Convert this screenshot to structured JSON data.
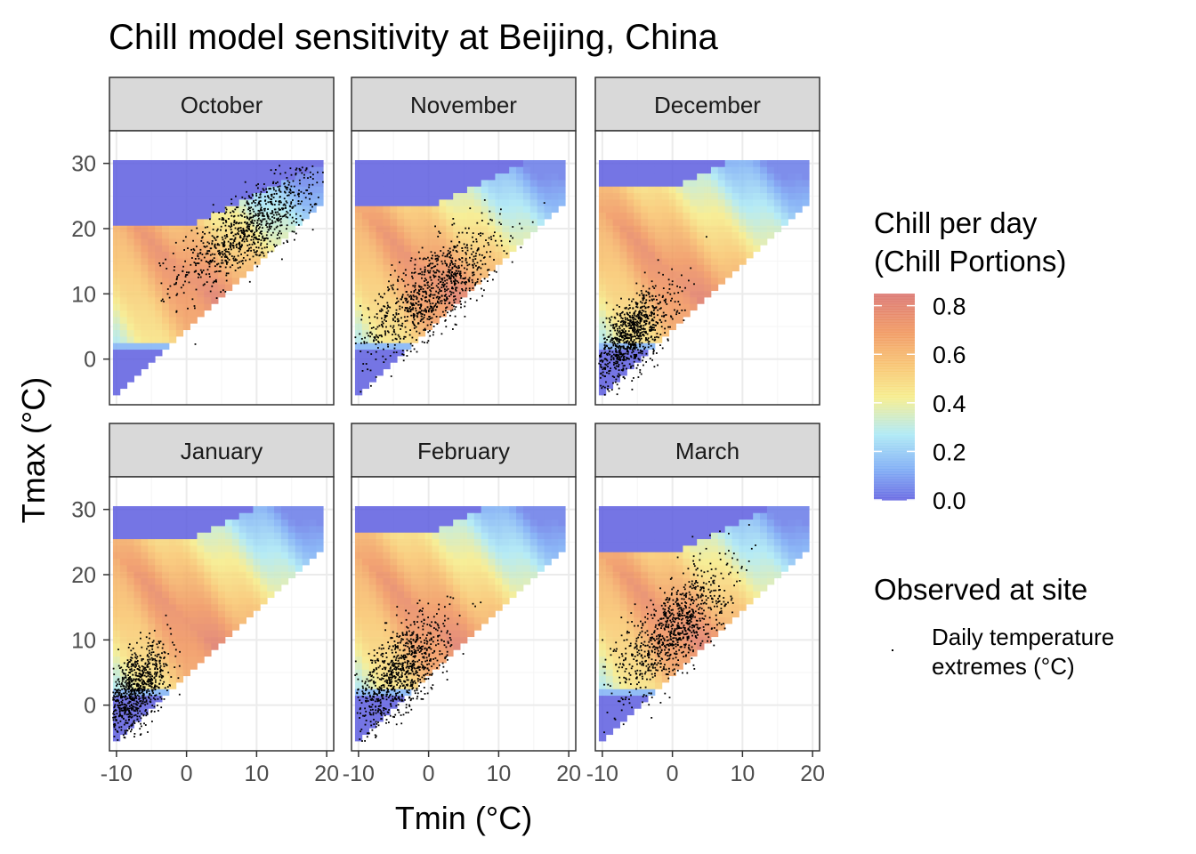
{
  "chart_data": {
    "type": "heatmap",
    "title": "Chill model sensitivity at Beijing, China",
    "xlabel": "Tmin (°C)",
    "ylabel": "Tmax (°C)",
    "xlim": [
      -11,
      21
    ],
    "ylim": [
      -7,
      35
    ],
    "x_ticks": [
      -10,
      0,
      10,
      20
    ],
    "y_ticks": [
      0,
      10,
      20,
      30
    ],
    "grid": true,
    "panels": [
      "October",
      "November",
      "December",
      "January",
      "February",
      "March"
    ],
    "heatmap_grid": {
      "tmin_range": [
        -10,
        19
      ],
      "tmax_range": [
        -5,
        30
      ],
      "step": 1,
      "valid_region": "Tmax >= Tmin + 5 (upper-left triangle)"
    },
    "fill_legend": {
      "title_line1": "Chill per day",
      "title_line2": "(Chill Portions)",
      "breaks": [
        0.0,
        0.2,
        0.4,
        0.6,
        0.8
      ],
      "labels": [
        "0.0",
        "0.2",
        "0.4",
        "0.6",
        "0.8"
      ],
      "limits": [
        0,
        0.85
      ],
      "colors": [
        "#5e5ee0",
        "#77a8f5",
        "#a9e8f5",
        "#f6ec86",
        "#f8c26a",
        "#f0925a",
        "#d9706a"
      ]
    },
    "point_legend": {
      "title": "Observed at site",
      "label_line1": "Daily temperature",
      "label_line2": "extremes (°C)"
    },
    "observations": [
      {
        "panel": "October",
        "tmin_mean": 9,
        "tmax_mean": 20,
        "tmin_sd": 5,
        "tmax_sd": 4.5,
        "corr": 0.75
      },
      {
        "panel": "November",
        "tmin_mean": 0.5,
        "tmax_mean": 10.5,
        "tmin_sd": 5,
        "tmax_sd": 5,
        "corr": 0.75
      },
      {
        "panel": "December",
        "tmin_mean": -6,
        "tmax_mean": 3.5,
        "tmin_sd": 3,
        "tmax_sd": 3.8,
        "corr": 0.65
      },
      {
        "panel": "January",
        "tmin_mean": -7.5,
        "tmax_mean": 2,
        "tmin_sd": 2.5,
        "tmax_sd": 3.5,
        "corr": 0.6
      },
      {
        "panel": "February",
        "tmin_mean": -4,
        "tmax_mean": 5,
        "tmin_sd": 3.5,
        "tmax_sd": 4.5,
        "corr": 0.65
      },
      {
        "panel": "March",
        "tmin_mean": 0,
        "tmax_mean": 11.5,
        "tmin_sd": 4,
        "tmax_sd": 5,
        "corr": 0.7
      }
    ],
    "colors": {
      "panel_border": "#333333",
      "strip_fill": "#d9d9d9",
      "grid_major": "#ebebeb",
      "grid_minor": "#f5f5f5",
      "point": "#000000"
    }
  }
}
